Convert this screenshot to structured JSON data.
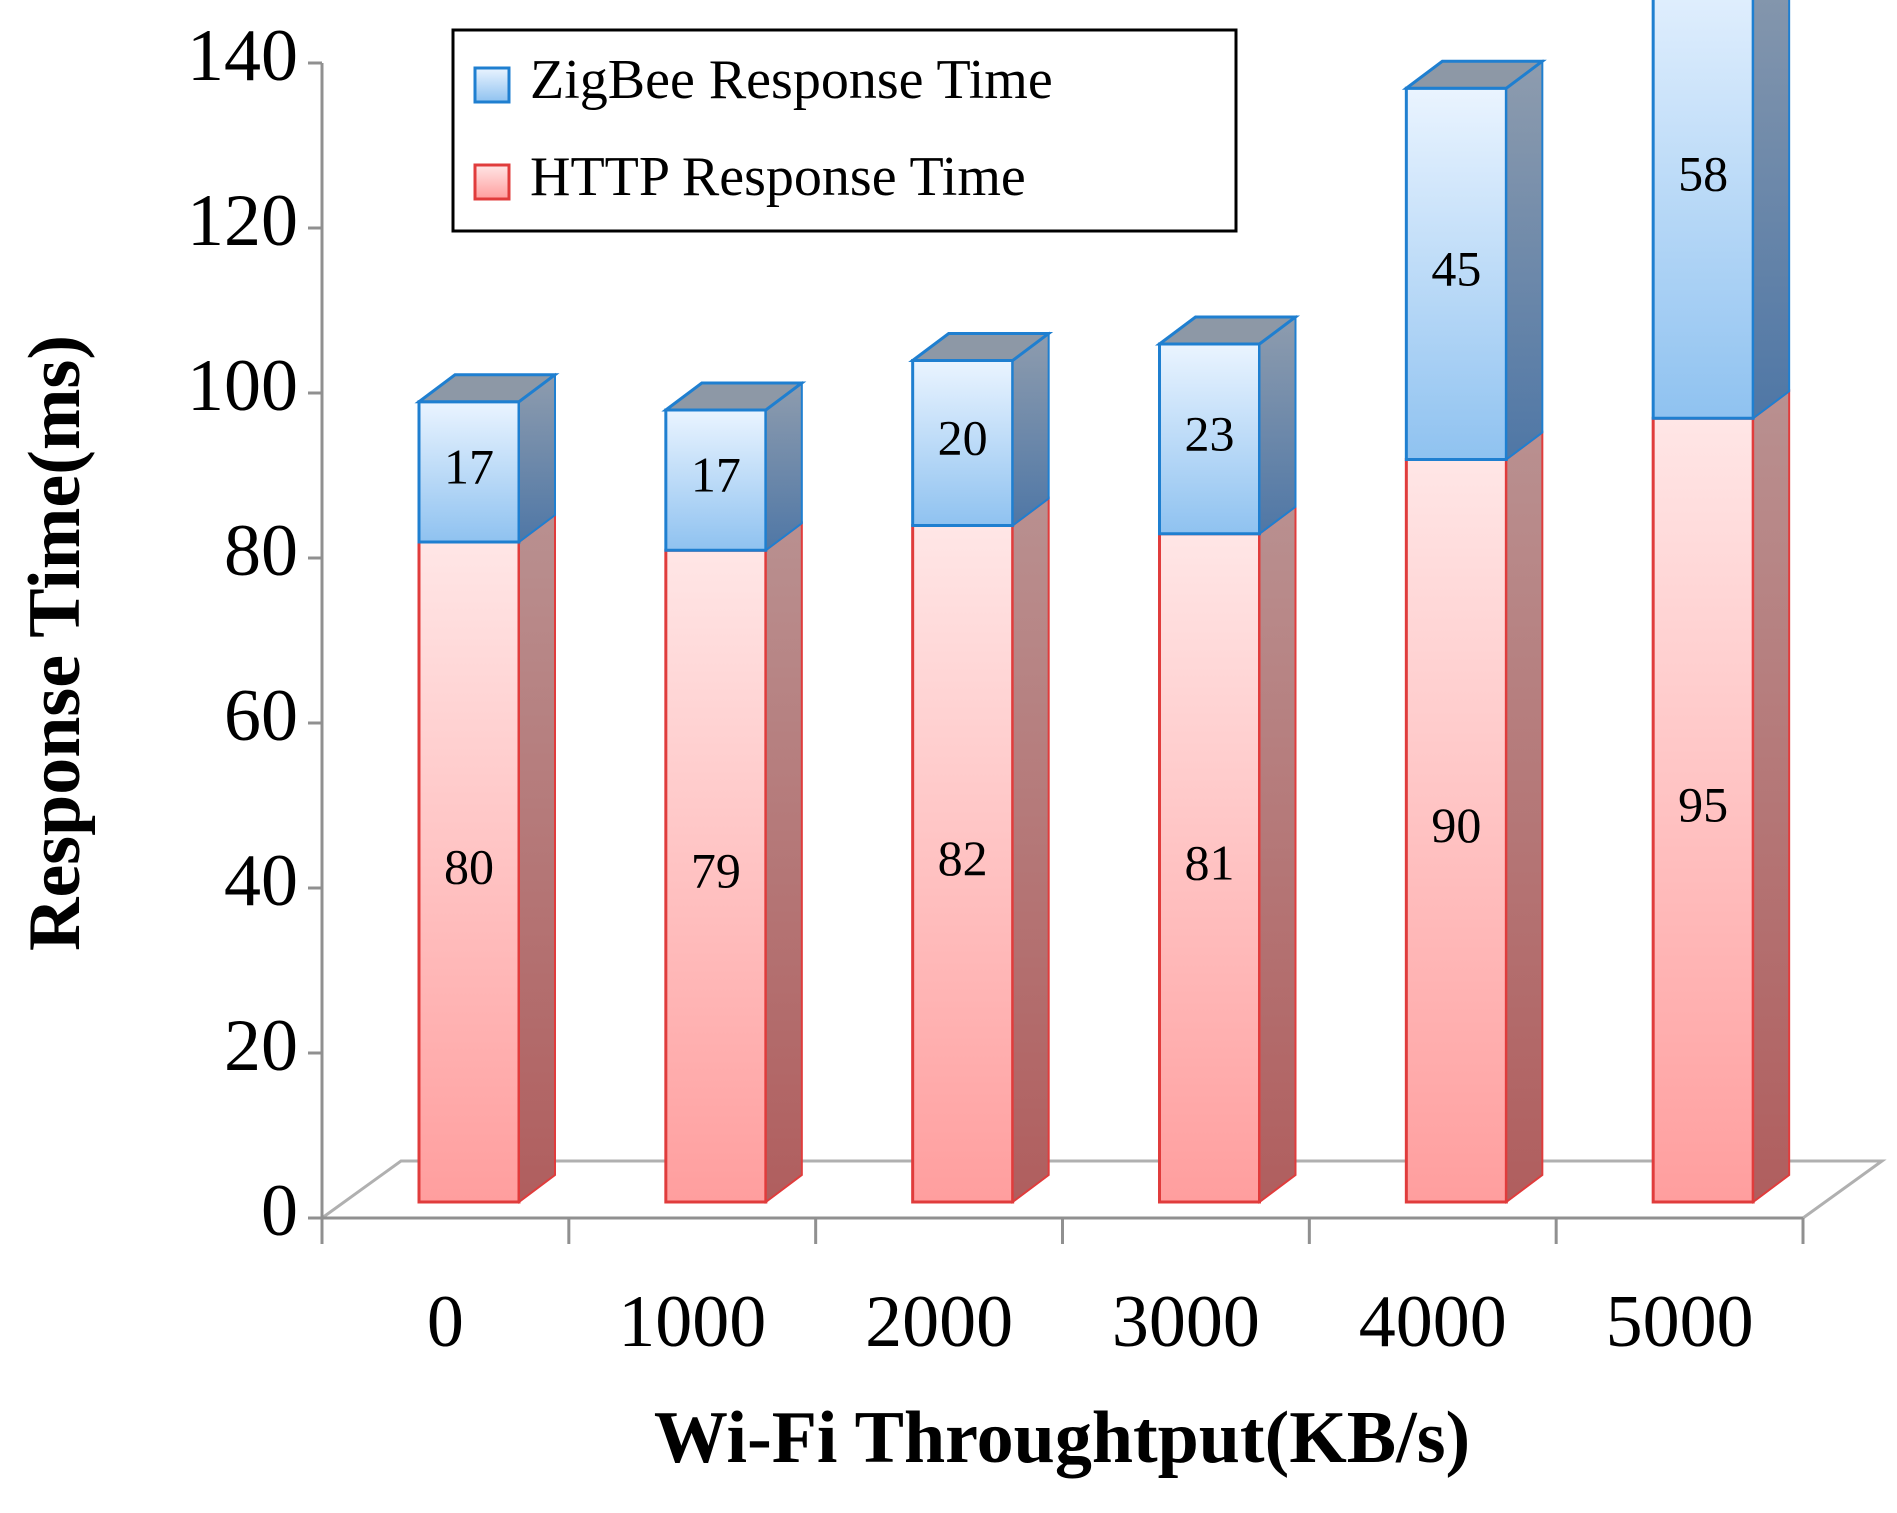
{
  "chart_data": {
    "type": "stacked-bar-3d",
    "x_label": "Wi-Fi Throughtput(KB/s)",
    "y_label": "Response Time(ms)",
    "categories": [
      "0",
      "1000",
      "2000",
      "3000",
      "4000",
      "5000"
    ],
    "series": [
      {
        "name": "HTTP Response Time",
        "color": "#e03c3c",
        "values": [
          80,
          79,
          82,
          81,
          90,
          95
        ]
      },
      {
        "name": "ZigBee Response Time",
        "color": "#1f7fd0",
        "values": [
          17,
          17,
          20,
          23,
          45,
          58
        ]
      }
    ],
    "ylim": [
      0,
      140
    ],
    "yticks": [
      0,
      20,
      40,
      60,
      80,
      100,
      120,
      140
    ]
  }
}
